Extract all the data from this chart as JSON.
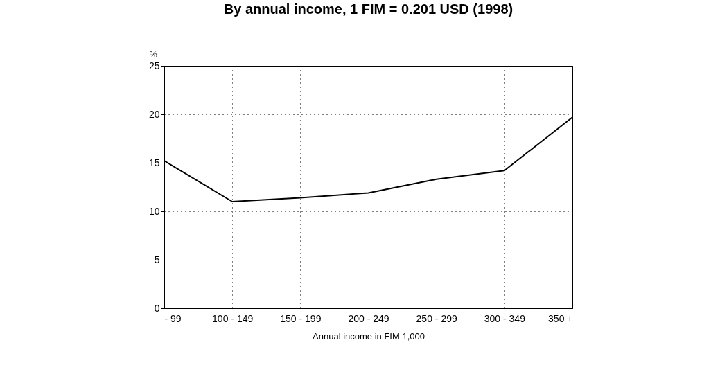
{
  "chart_data": {
    "type": "line",
    "title": "By annual income, 1 FIM = 0.201 USD (1998)",
    "xlabel": "Annual income in FIM 1,000",
    "ylabel": "%",
    "categories": [
      "- 99",
      "100 - 149",
      "150 - 199",
      "200 - 249",
      "250 - 299",
      "300 - 349",
      "350 +"
    ],
    "series": [
      {
        "color": "#000000",
        "values": [
          15.2,
          11.0,
          11.4,
          11.9,
          13.3,
          14.2,
          19.7
        ]
      }
    ],
    "ylim": [
      0,
      25
    ],
    "yticks": [
      0,
      5,
      10,
      15,
      20,
      25
    ],
    "grid": true,
    "legend": false,
    "marker": "none",
    "line_style": "solid"
  }
}
